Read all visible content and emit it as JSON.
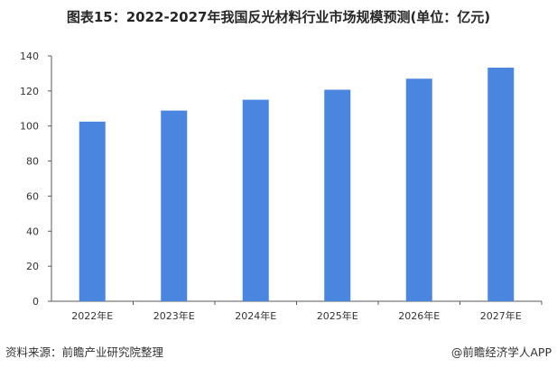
{
  "title": "图表15：2022-2027年我国反光材料行业市场规模预测(单位：亿元)",
  "source": "资料来源：前瞻产业研究院整理",
  "brand": "@前瞻经济学人APP",
  "colors": {
    "bar": "#4A86E0",
    "axis": "#595959",
    "text": "#333333"
  },
  "chart_data": {
    "type": "bar",
    "title": "图表15：2022-2027年我国反光材料行业市场规模预测(单位：亿元)",
    "categories": [
      "2022年E",
      "2023年E",
      "2024年E",
      "2025年E",
      "2026年E",
      "2027年E"
    ],
    "values": [
      102.5,
      108.8,
      115.0,
      120.7,
      127.0,
      133.3
    ],
    "yticks": [
      0,
      20,
      40,
      60,
      80,
      100,
      120,
      140
    ],
    "ylim": [
      0,
      140
    ],
    "xlabel": "",
    "ylabel": "",
    "grid": false,
    "legend": "none"
  }
}
